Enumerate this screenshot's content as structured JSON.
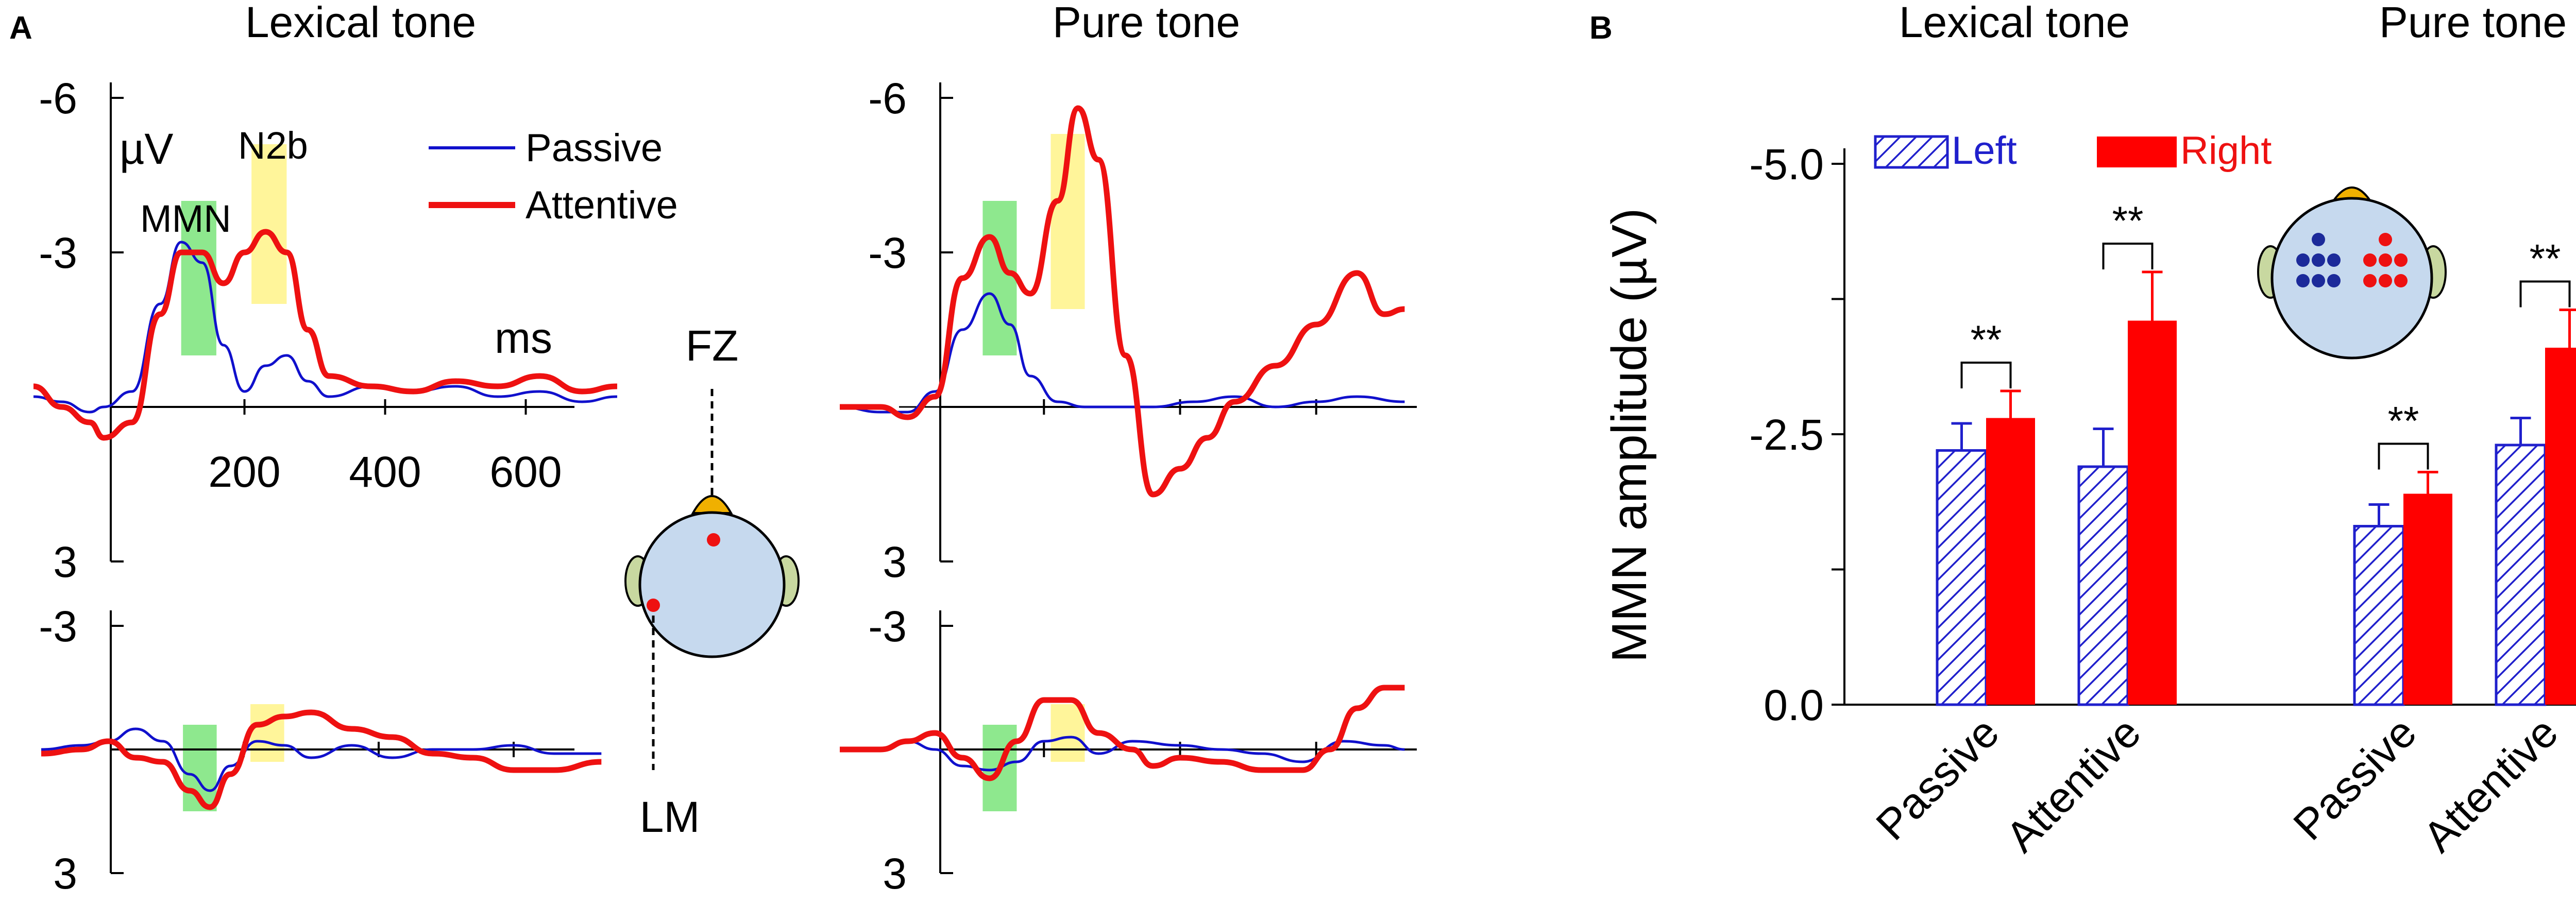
{
  "figure": {
    "panel_a_letter": "A",
    "panel_b_letter": "B",
    "unit_label": "µV",
    "time_unit": "ms",
    "fz_label": "FZ",
    "lm_label": "LM",
    "mmn_label": "MMN",
    "n2b_label": "N2b"
  },
  "colors": {
    "passive": "#1010cc",
    "attentive": "#ee1111",
    "mmn_window": "#8ee88e",
    "n2b_window": "#fff59a",
    "left_hatch": "#2020cc",
    "right_bar": "#ff0000",
    "head": "#c6d9ee",
    "ear": "#c8d8a0",
    "nose": "#f0b000"
  },
  "chart_data": [
    {
      "id": "erp-lexical-fz",
      "type": "line",
      "title": "Lexical tone",
      "xlabel": "ms",
      "ylabel": "µV",
      "xlim": [
        -100,
        730
      ],
      "ylim": [
        -6,
        3
      ],
      "y_inverted": true,
      "y_ticks": [
        "-6",
        "-3",
        "3"
      ],
      "y_tick_values": [
        -6,
        -3,
        3
      ],
      "x_ticks": [
        "200",
        "400",
        "600"
      ],
      "x_tick_values": [
        200,
        400,
        600
      ],
      "legend": [
        "Passive",
        "Attentive"
      ],
      "annotations": [
        "MMN",
        "N2b"
      ],
      "windows": [
        {
          "name": "MMN",
          "from": 110,
          "to": 160
        },
        {
          "name": "N2b",
          "from": 210,
          "to": 260
        }
      ],
      "series": [
        {
          "name": "Passive",
          "x": [
            -100,
            -60,
            -20,
            0,
            40,
            80,
            110,
            140,
            170,
            200,
            230,
            260,
            290,
            320,
            380,
            440,
            500,
            560,
            620,
            680,
            730
          ],
          "values": [
            -0.2,
            -0.1,
            0.1,
            0.0,
            -0.3,
            -2.0,
            -3.2,
            -2.8,
            -1.2,
            -0.3,
            -0.8,
            -1.0,
            -0.5,
            -0.2,
            -0.4,
            -0.3,
            -0.4,
            -0.2,
            -0.3,
            -0.1,
            -0.2
          ]
        },
        {
          "name": "Attentive",
          "x": [
            -100,
            -60,
            -20,
            0,
            40,
            80,
            110,
            140,
            170,
            200,
            230,
            260,
            290,
            320,
            380,
            440,
            500,
            560,
            620,
            680,
            730
          ],
          "values": [
            -0.4,
            0.0,
            0.3,
            0.6,
            0.3,
            -1.8,
            -3.0,
            -3.0,
            -2.4,
            -3.0,
            -3.4,
            -3.0,
            -1.5,
            -0.6,
            -0.4,
            -0.3,
            -0.5,
            -0.4,
            -0.6,
            -0.3,
            -0.4
          ]
        }
      ]
    },
    {
      "id": "erp-lexical-lm",
      "type": "line",
      "title": "",
      "xlim": [
        -100,
        730
      ],
      "ylim": [
        -3,
        3
      ],
      "y_inverted": true,
      "y_ticks": [
        "-3",
        "3"
      ],
      "y_tick_values": [
        -3,
        3
      ],
      "windows": [
        {
          "name": "MMN",
          "from": 110,
          "to": 160
        },
        {
          "name": "N2b",
          "from": 210,
          "to": 260
        }
      ],
      "series": [
        {
          "name": "Passive",
          "x": [
            -100,
            -40,
            0,
            40,
            80,
            120,
            150,
            180,
            220,
            260,
            300,
            360,
            420,
            480,
            540,
            600,
            660,
            730
          ],
          "values": [
            0.0,
            -0.1,
            -0.2,
            -0.5,
            -0.2,
            0.6,
            1.0,
            0.4,
            -0.2,
            -0.1,
            0.2,
            -0.1,
            0.2,
            0.0,
            0.0,
            -0.1,
            0.1,
            0.1
          ]
        },
        {
          "name": "Attentive",
          "x": [
            -100,
            -40,
            0,
            40,
            80,
            120,
            150,
            180,
            220,
            260,
            300,
            360,
            420,
            480,
            540,
            600,
            660,
            730
          ],
          "values": [
            0.1,
            0.0,
            -0.2,
            0.2,
            0.3,
            1.0,
            1.4,
            0.6,
            -0.6,
            -0.8,
            -0.9,
            -0.5,
            -0.3,
            0.1,
            0.2,
            0.5,
            0.5,
            0.3
          ]
        }
      ]
    },
    {
      "id": "erp-pure-fz",
      "type": "line",
      "title": "Pure tone",
      "xlim": [
        -100,
        730
      ],
      "ylim": [
        -6,
        3
      ],
      "y_inverted": true,
      "y_ticks": [
        "-6",
        "-3",
        "3"
      ],
      "y_tick_values": [
        -6,
        -3,
        3
      ],
      "windows": [
        {
          "name": "MMN",
          "from": 110,
          "to": 160
        },
        {
          "name": "N2b",
          "from": 210,
          "to": 260
        }
      ],
      "series": [
        {
          "name": "Passive",
          "x": [
            -100,
            -40,
            0,
            40,
            80,
            120,
            150,
            180,
            220,
            260,
            300,
            360,
            420,
            480,
            540,
            600,
            660,
            730
          ],
          "values": [
            0.0,
            0.1,
            0.1,
            -0.3,
            -1.5,
            -2.2,
            -1.6,
            -0.6,
            -0.1,
            0.0,
            0.0,
            0.0,
            -0.1,
            -0.2,
            0.0,
            -0.1,
            -0.2,
            -0.1
          ]
        },
        {
          "name": "Attentive",
          "x": [
            -100,
            -40,
            0,
            40,
            80,
            120,
            150,
            180,
            220,
            250,
            280,
            320,
            360,
            400,
            440,
            480,
            540,
            600,
            660,
            700,
            730
          ],
          "values": [
            0.0,
            0.0,
            0.2,
            -0.2,
            -2.5,
            -3.3,
            -2.6,
            -2.2,
            -4.0,
            -5.8,
            -4.8,
            -1.0,
            1.7,
            1.2,
            0.6,
            -0.1,
            -0.8,
            -1.6,
            -2.6,
            -1.8,
            -1.9
          ]
        }
      ]
    },
    {
      "id": "erp-pure-lm",
      "type": "line",
      "title": "",
      "xlim": [
        -100,
        730
      ],
      "ylim": [
        -3,
        3
      ],
      "y_inverted": true,
      "y_ticks": [
        "-3",
        "3"
      ],
      "y_tick_values": [
        -3,
        3
      ],
      "windows": [
        {
          "name": "MMN",
          "from": 110,
          "to": 160
        },
        {
          "name": "N2b",
          "from": 210,
          "to": 260
        }
      ],
      "series": [
        {
          "name": "Passive",
          "x": [
            -100,
            -40,
            0,
            40,
            80,
            120,
            160,
            200,
            240,
            280,
            330,
            400,
            460,
            520,
            580,
            640,
            700,
            730
          ],
          "values": [
            0.0,
            0.0,
            -0.2,
            0.0,
            0.4,
            0.5,
            0.3,
            -0.2,
            -0.3,
            0.1,
            -0.2,
            -0.1,
            0.0,
            0.1,
            0.3,
            -0.2,
            -0.1,
            0.0
          ]
        },
        {
          "name": "Attentive",
          "x": [
            -100,
            -40,
            0,
            40,
            80,
            120,
            160,
            200,
            240,
            280,
            330,
            360,
            400,
            460,
            520,
            580,
            620,
            660,
            700,
            730
          ],
          "values": [
            0.0,
            0.0,
            -0.2,
            -0.4,
            0.2,
            0.7,
            -0.2,
            -1.2,
            -1.2,
            -0.4,
            0.0,
            0.4,
            0.2,
            0.3,
            0.5,
            0.5,
            0.0,
            -1.0,
            -1.5,
            -1.5
          ]
        }
      ]
    },
    {
      "id": "mmn-amplitude-bars",
      "type": "bar",
      "ylabel": "MMN amplitude (µV)",
      "ylim": [
        0,
        -5
      ],
      "y_inverted": true,
      "y_ticks": [
        "0.0",
        "-2.5",
        "-5.0"
      ],
      "y_tick_values": [
        0,
        -2.5,
        -5
      ],
      "groups": [
        "Lexical tone",
        "Pure tone"
      ],
      "categories": [
        "Passive",
        "Attentive",
        "Passive",
        "Attentive"
      ],
      "legend": [
        "Left",
        "Right"
      ],
      "series": [
        {
          "name": "Left",
          "values": [
            -2.35,
            -2.2,
            -1.65,
            -2.4
          ],
          "errors": [
            0.25,
            0.35,
            0.2,
            0.25
          ]
        },
        {
          "name": "Right",
          "values": [
            -2.65,
            -3.55,
            -1.95,
            -3.3
          ],
          "errors": [
            0.25,
            0.45,
            0.2,
            0.35
          ]
        }
      ],
      "significance": [
        "**",
        "**",
        "**",
        "**"
      ]
    }
  ]
}
